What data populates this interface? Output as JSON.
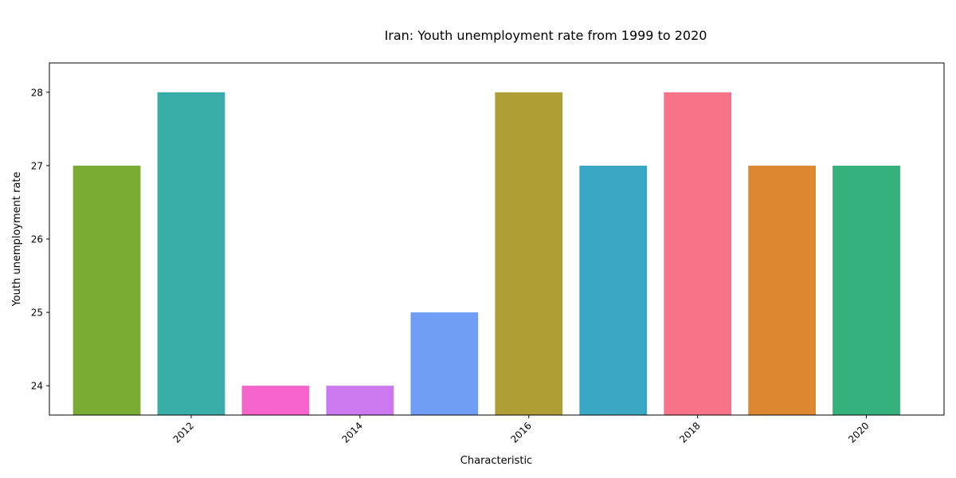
{
  "chart_data": {
    "type": "bar",
    "title": "Iran: Youth unemployment rate from 1999 to 2020",
    "xlabel": "Characteristic",
    "ylabel": "Youth unemployment rate",
    "x": [
      2011,
      2012,
      2013,
      2014,
      2015,
      2016,
      2017,
      2018,
      2019,
      2020
    ],
    "values": [
      27,
      28,
      24,
      24,
      25,
      28,
      27,
      28,
      27,
      27
    ],
    "colors": [
      "#7aab33",
      "#38ada7",
      "#f565cc",
      "#cc79f1",
      "#6f9ef4",
      "#ae9e33",
      "#39a7c4",
      "#f67388",
      "#de8932",
      "#34b07a"
    ],
    "x_ticks": [
      2012,
      2014,
      2016,
      2018,
      2020
    ],
    "y_ticks": [
      24,
      25,
      26,
      27,
      28
    ],
    "xlim": [
      2010.32,
      2020.92
    ],
    "ylim": [
      23.6,
      28.4
    ],
    "grid": false,
    "legend": "none"
  }
}
